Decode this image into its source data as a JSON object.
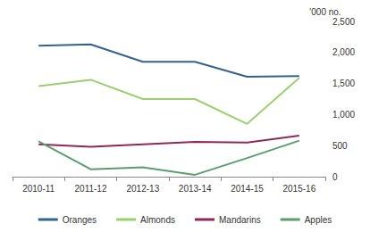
{
  "chart_data": {
    "type": "line",
    "y_label": "'000 no.",
    "categories": [
      "2010-11",
      "2011-12",
      "2012-13",
      "2013-14",
      "2014-15",
      "2015-16"
    ],
    "series": [
      {
        "name": "Oranges",
        "color": "#31638f",
        "values": [
          2110,
          2130,
          1850,
          1850,
          1610,
          1620
        ]
      },
      {
        "name": "Almonds",
        "color": "#9bcf70",
        "values": [
          1460,
          1560,
          1250,
          1250,
          850,
          1590
        ]
      },
      {
        "name": "Mandarins",
        "color": "#8e2a57",
        "values": [
          520,
          480,
          520,
          560,
          550,
          660
        ]
      },
      {
        "name": "Apples",
        "color": "#5c9e6b",
        "values": [
          570,
          120,
          150,
          30,
          300,
          580
        ]
      }
    ],
    "ylim": [
      0,
      2500
    ],
    "yticks": [
      0,
      500,
      {
        "value": 1000,
        "label": "1,000"
      },
      {
        "value": 1500,
        "label": "1,500"
      },
      {
        "value": 2000,
        "label": "2,000"
      },
      {
        "value": 2500,
        "label": "2,500"
      }
    ],
    "grid": false,
    "legend": "bottom"
  }
}
